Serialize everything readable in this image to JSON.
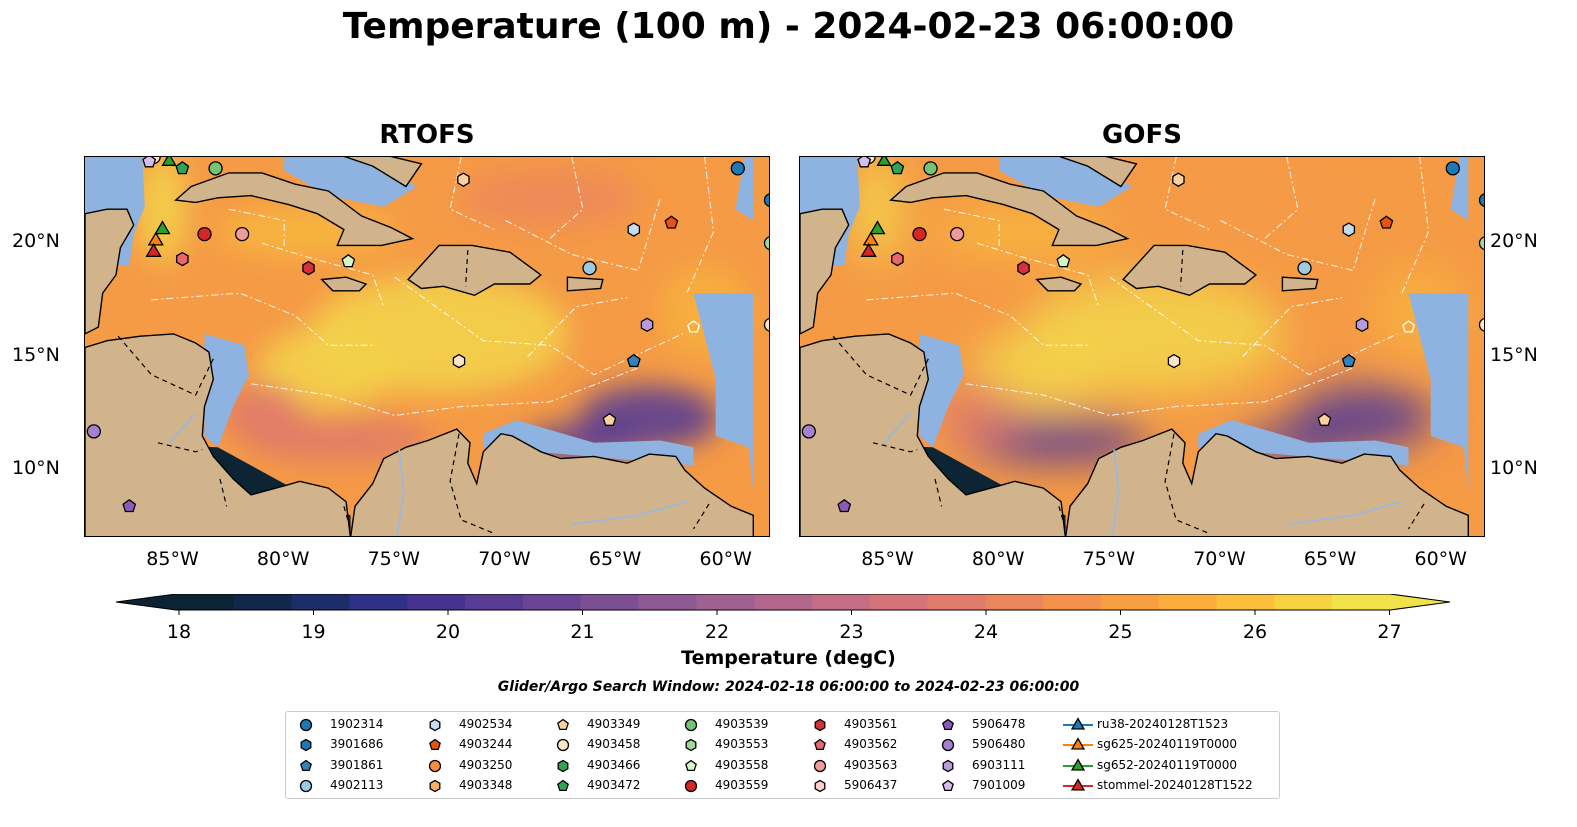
{
  "title": "Temperature (100 m) - 2024-02-23 06:00:00",
  "panels": [
    {
      "title": "RTOFS"
    },
    {
      "title": "GOFS"
    }
  ],
  "axes": {
    "lon_ticks": [
      "85°W",
      "80°W",
      "75°W",
      "70°W",
      "65°W",
      "60°W"
    ],
    "lat_ticks": [
      "20°N",
      "15°N",
      "10°N"
    ]
  },
  "colorbar": {
    "label": "Temperature (degC)",
    "ticks": [
      "18",
      "19",
      "20",
      "21",
      "22",
      "23",
      "24",
      "25",
      "26",
      "27"
    ],
    "colors": [
      "#0b2334",
      "#10284b",
      "#1c2d6a",
      "#302f8a",
      "#45338f",
      "#583b92",
      "#6a4593",
      "#7c4f94",
      "#8e5893",
      "#a06092",
      "#b3668c",
      "#c46d84",
      "#d5737a",
      "#e17b6c",
      "#eb855d",
      "#f3914d",
      "#f89f42",
      "#fbae3d",
      "#fbbf3d",
      "#f6d142",
      "#f2e24a"
    ]
  },
  "search_window": "Glider/Argo Search Window: 2024-02-18 06:00:00 to 2024-02-23 06:00:00",
  "legend": {
    "columns": [
      [
        {
          "label": "1902314",
          "marker": "circle",
          "color": "#1f77b4"
        },
        {
          "label": "3901686",
          "marker": "hexagon",
          "color": "#1f77b4"
        },
        {
          "label": "3901861",
          "marker": "pentagon",
          "color": "#3182bd"
        },
        {
          "label": "4902113",
          "marker": "circle",
          "color": "#9ecae1"
        }
      ],
      [
        {
          "label": "4902534",
          "marker": "hexagon",
          "color": "#c6dbef"
        },
        {
          "label": "4903244",
          "marker": "pentagon",
          "color": "#e6550d"
        },
        {
          "label": "4903250",
          "marker": "circle",
          "color": "#fd8d3c"
        },
        {
          "label": "4903348",
          "marker": "hexagon",
          "color": "#fdae6b"
        }
      ],
      [
        {
          "label": "4903349",
          "marker": "pentagon",
          "color": "#fdd0a2"
        },
        {
          "label": "4903458",
          "marker": "circle",
          "color": "#fde5c8"
        },
        {
          "label": "4903466",
          "marker": "hexagon",
          "color": "#31a354"
        },
        {
          "label": "4903472",
          "marker": "pentagon",
          "color": "#31a354"
        }
      ],
      [
        {
          "label": "4903539",
          "marker": "circle",
          "color": "#74c476"
        },
        {
          "label": "4903553",
          "marker": "hexagon",
          "color": "#a1d99b"
        },
        {
          "label": "4903558",
          "marker": "pentagon",
          "color": "#d4f5c8"
        },
        {
          "label": "4903559",
          "marker": "circle",
          "color": "#d62728"
        }
      ],
      [
        {
          "label": "4903561",
          "marker": "hexagon",
          "color": "#d6303b"
        },
        {
          "label": "4903562",
          "marker": "pentagon",
          "color": "#e8666e"
        },
        {
          "label": "4903563",
          "marker": "circle",
          "color": "#f09b9b"
        },
        {
          "label": "5906437",
          "marker": "hexagon",
          "color": "#fcd0cb"
        }
      ],
      [
        {
          "label": "5906478",
          "marker": "pentagon",
          "color": "#8c5ab8"
        },
        {
          "label": "5906480",
          "marker": "circle",
          "color": "#a67fd1"
        },
        {
          "label": "6903111",
          "marker": "hexagon",
          "color": "#bb9be0"
        },
        {
          "label": "7901009",
          "marker": "pentagon",
          "color": "#d4bdf0"
        }
      ],
      [
        {
          "label": "ru38-20240128T1523",
          "marker": "triangle-line",
          "color": "#1f77b4"
        },
        {
          "label": "sg625-20240119T0000",
          "marker": "triangle-line",
          "color": "#ff7f0e"
        },
        {
          "label": "sg652-20240119T0000",
          "marker": "triangle-line",
          "color": "#2ca02c"
        },
        {
          "label": "stommel-20240128T1522",
          "marker": "triangle-line",
          "color": "#d62728"
        }
      ]
    ]
  },
  "map_colors": {
    "land": "#d2b48c",
    "shallow_water": "#8fb3e0",
    "deep_dark": "#0c2434",
    "warm_field": "#f59a45",
    "hot_field": "#f3d24a",
    "cool_field": "#5b3f92",
    "mid_field": "#e07a6a"
  }
}
